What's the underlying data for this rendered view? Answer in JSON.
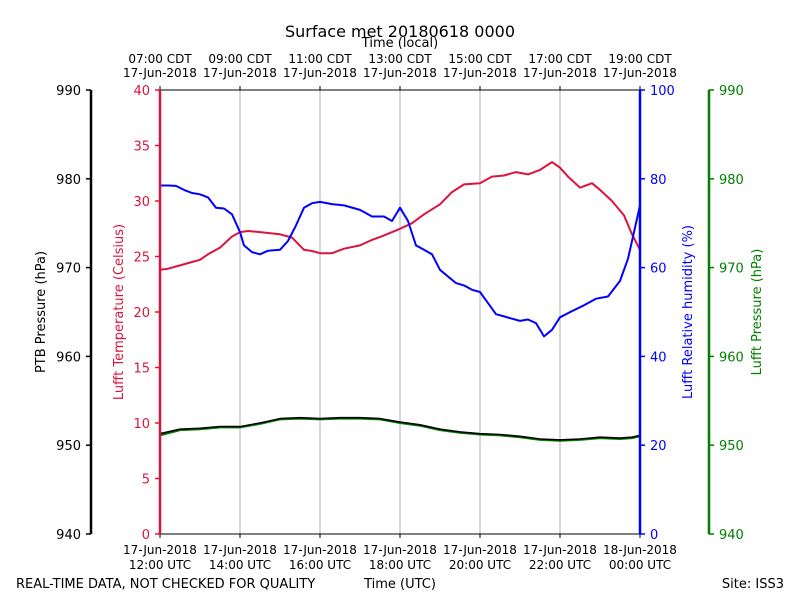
{
  "chart_data": {
    "type": "line",
    "title": "Surface met 20180618 0000",
    "top_axis_title": "Time (local)",
    "xlabel": "Time (UTC)",
    "footer_left": "REAL-TIME DATA, NOT CHECKED FOR QUALITY",
    "footer_right": "Site: ISS3",
    "x_range_hours": [
      0,
      12
    ],
    "x_ticks_hours": [
      0,
      2,
      4,
      6,
      8,
      10,
      12
    ],
    "x_tick_labels_utc": [
      [
        "17-Jun-2018",
        "12:00 UTC"
      ],
      [
        "17-Jun-2018",
        "14:00 UTC"
      ],
      [
        "17-Jun-2018",
        "16:00 UTC"
      ],
      [
        "17-Jun-2018",
        "18:00 UTC"
      ],
      [
        "17-Jun-2018",
        "20:00 UTC"
      ],
      [
        "17-Jun-2018",
        "22:00 UTC"
      ],
      [
        "18-Jun-2018",
        "00:00 UTC"
      ]
    ],
    "x_tick_labels_local": [
      [
        "07:00 CDT",
        "17-Jun-2018"
      ],
      [
        "09:00 CDT",
        "17-Jun-2018"
      ],
      [
        "11:00 CDT",
        "17-Jun-2018"
      ],
      [
        "13:00 CDT",
        "17-Jun-2018"
      ],
      [
        "15:00 CDT",
        "17-Jun-2018"
      ],
      [
        "17:00 CDT",
        "17-Jun-2018"
      ],
      [
        "19:00 CDT",
        "17-Jun-2018"
      ]
    ],
    "axes": {
      "ptb_pressure": {
        "label": "PTB Pressure (hPa)",
        "range": [
          940,
          990
        ],
        "ticks": [
          940,
          950,
          960,
          970,
          980,
          990
        ],
        "color": "#000000"
      },
      "temperature": {
        "label": "Lufft Temperature (Celsius)",
        "range": [
          0,
          40
        ],
        "ticks": [
          0,
          5,
          10,
          15,
          20,
          25,
          30,
          35,
          40
        ],
        "color": "#dc143c"
      },
      "humidity": {
        "label": "Lufft Relative humidity (%)",
        "range": [
          0,
          100
        ],
        "ticks": [
          0,
          20,
          40,
          60,
          80,
          100
        ],
        "color": "#0000ff"
      },
      "lufft_pressure": {
        "label": "Lufft Pressure (hPa)",
        "range": [
          940,
          990
        ],
        "ticks": [
          940,
          950,
          960,
          970,
          980,
          990
        ],
        "color": "#008000"
      }
    },
    "series": [
      {
        "name": "Lufft Temperature",
        "axis": "temperature",
        "color": "#dc143c",
        "x": [
          0,
          0.2,
          0.5,
          0.8,
          1.0,
          1.2,
          1.5,
          1.8,
          2.0,
          2.2,
          2.5,
          3.0,
          3.3,
          3.6,
          3.8,
          4.0,
          4.3,
          4.6,
          5.0,
          5.3,
          5.6,
          6.0,
          6.3,
          6.6,
          7.0,
          7.3,
          7.6,
          8.0,
          8.3,
          8.6,
          8.9,
          9.2,
          9.5,
          9.8,
          10.0,
          10.2,
          10.5,
          10.8,
          11.0,
          11.3,
          11.6,
          11.8,
          12.0
        ],
        "values": [
          23.8,
          23.9,
          24.2,
          24.5,
          24.7,
          25.2,
          25.8,
          26.8,
          27.2,
          27.3,
          27.2,
          27.0,
          26.7,
          25.6,
          25.5,
          25.3,
          25.3,
          25.7,
          26.0,
          26.5,
          26.9,
          27.5,
          28.0,
          28.8,
          29.7,
          30.8,
          31.5,
          31.6,
          32.2,
          32.3,
          32.6,
          32.4,
          32.8,
          33.5,
          33.0,
          32.2,
          31.2,
          31.6,
          31.0,
          30.0,
          28.7,
          27.0,
          25.6
        ]
      },
      {
        "name": "Lufft Relative humidity",
        "axis": "humidity",
        "color": "#0000ff",
        "x": [
          0,
          0.2,
          0.4,
          0.6,
          0.8,
          1.0,
          1.2,
          1.4,
          1.6,
          1.8,
          2.0,
          2.1,
          2.3,
          2.5,
          2.7,
          3.0,
          3.2,
          3.4,
          3.6,
          3.8,
          4.0,
          4.3,
          4.6,
          5.0,
          5.3,
          5.6,
          5.8,
          6.0,
          6.2,
          6.4,
          6.6,
          6.8,
          7.0,
          7.2,
          7.4,
          7.6,
          7.8,
          8.0,
          8.2,
          8.4,
          8.6,
          8.8,
          9.0,
          9.2,
          9.4,
          9.6,
          9.8,
          10.0,
          10.3,
          10.6,
          10.9,
          11.2,
          11.5,
          11.7,
          11.8,
          11.9,
          12.0
        ],
        "values": [
          78.5,
          78.5,
          78.4,
          77.5,
          76.8,
          76.5,
          75.8,
          73.5,
          73.3,
          72.0,
          68.0,
          65.0,
          63.5,
          63.0,
          63.8,
          64.0,
          66.0,
          69.5,
          73.5,
          74.5,
          74.8,
          74.3,
          74.0,
          73.0,
          71.5,
          71.5,
          70.5,
          73.5,
          70.5,
          65.0,
          64.0,
          63.0,
          59.5,
          58.0,
          56.5,
          56.0,
          55.0,
          54.5,
          52.0,
          49.5,
          49.0,
          48.5,
          48.0,
          48.3,
          47.5,
          44.5,
          46.0,
          48.8,
          50.2,
          51.5,
          53.0,
          53.5,
          57.0,
          62.0,
          66.0,
          70.0,
          74.0
        ]
      },
      {
        "name": "Lufft Pressure",
        "axis": "lufft_pressure",
        "color": "#008000",
        "x": [
          0,
          0.5,
          1.0,
          1.5,
          2.0,
          2.5,
          3.0,
          3.5,
          4.0,
          4.5,
          5.0,
          5.5,
          6.0,
          6.5,
          7.0,
          7.5,
          8.0,
          8.5,
          9.0,
          9.5,
          10.0,
          10.5,
          11.0,
          11.5,
          11.8,
          12.0
        ],
        "values": [
          951.1,
          951.7,
          951.8,
          952.0,
          952.0,
          952.4,
          952.9,
          953.0,
          952.9,
          953.0,
          953.0,
          952.9,
          952.5,
          952.2,
          951.7,
          951.4,
          951.2,
          951.1,
          950.9,
          950.6,
          950.5,
          950.6,
          950.8,
          950.7,
          950.8,
          951.0
        ]
      },
      {
        "name": "PTB Pressure",
        "axis": "ptb_pressure",
        "color": "#000000",
        "x": [
          0,
          0.5,
          1.0,
          1.5,
          2.0,
          2.5,
          3.0,
          3.5,
          4.0,
          4.5,
          5.0,
          5.5,
          6.0,
          6.5,
          7.0,
          7.5,
          8.0,
          8.5,
          9.0,
          9.5,
          10.0,
          10.5,
          11.0,
          11.5,
          11.8,
          12.0
        ],
        "values": [
          951.3,
          951.8,
          951.9,
          952.1,
          952.1,
          952.5,
          953.0,
          953.1,
          953.0,
          953.1,
          953.1,
          953.0,
          952.6,
          952.3,
          951.8,
          951.5,
          951.3,
          951.2,
          951.0,
          950.7,
          950.6,
          950.7,
          950.9,
          950.8,
          950.9,
          951.1
        ]
      }
    ]
  }
}
